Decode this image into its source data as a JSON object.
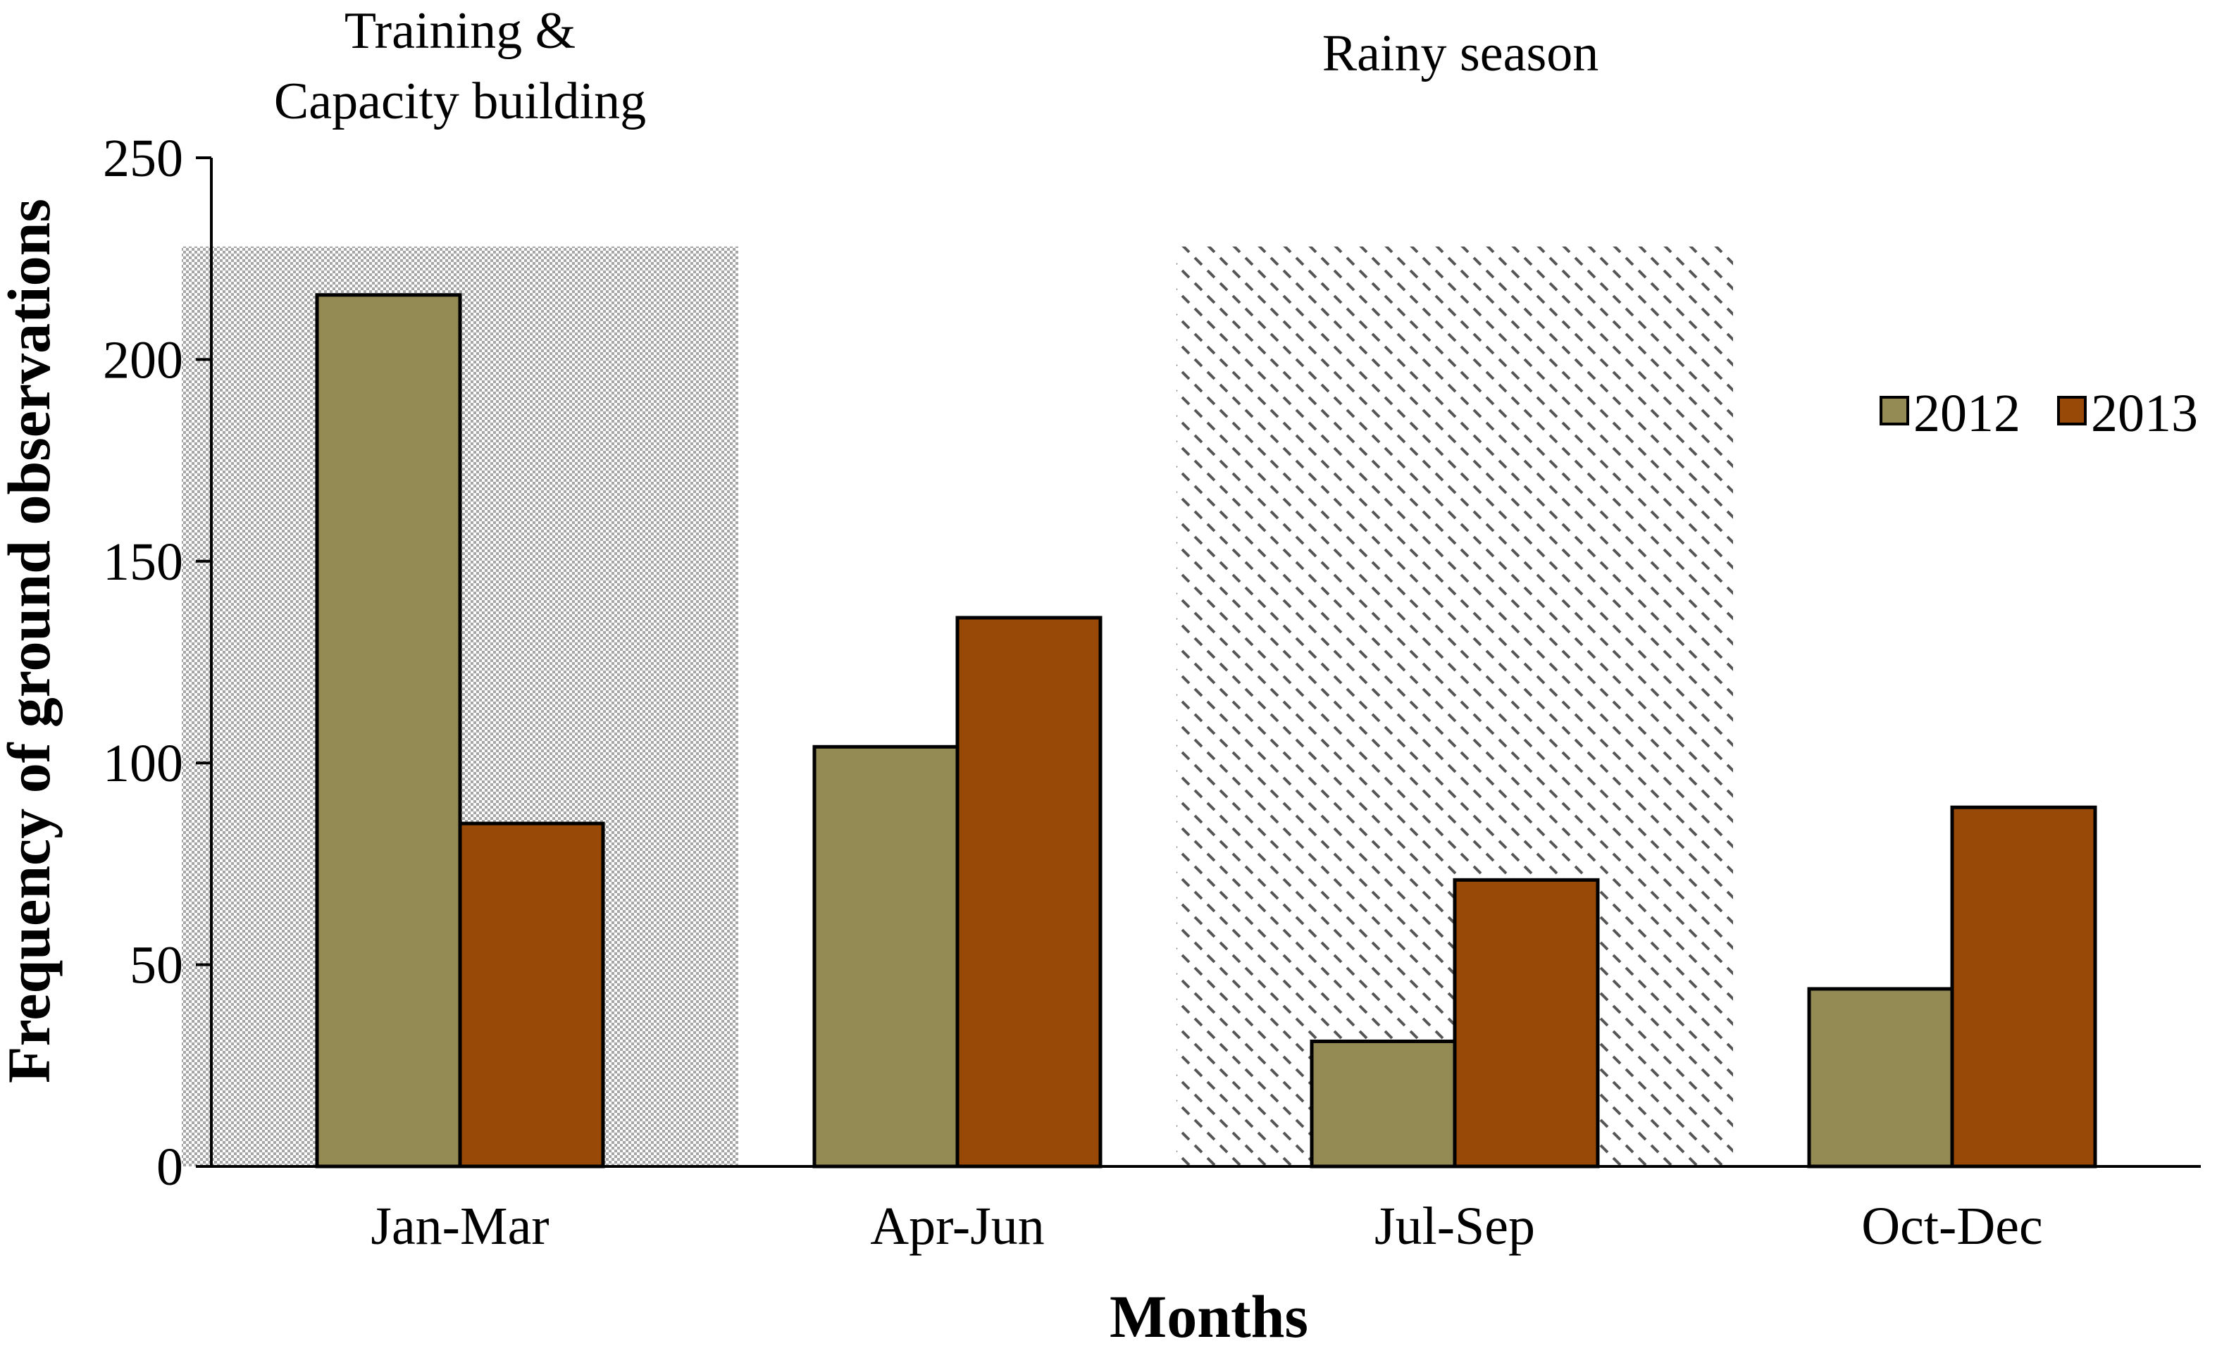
{
  "chart_data": {
    "type": "bar",
    "title": "",
    "xlabel": "Months",
    "ylabel": "Frequency of ground observations",
    "categories": [
      "Jan-Mar",
      "Apr-Jun",
      "Jul-Sep",
      "Oct-Dec"
    ],
    "series": [
      {
        "name": "2012",
        "values": [
          216,
          104,
          31,
          44
        ],
        "color": "#948a54"
      },
      {
        "name": "2013",
        "values": [
          85,
          136,
          71,
          89
        ],
        "color": "#984807"
      }
    ],
    "ylim": [
      0,
      250
    ],
    "yticks": [
      0,
      50,
      100,
      150,
      200,
      250
    ],
    "grid": false,
    "legend": "right",
    "shaded_regions": [
      {
        "category": "Jan-Mar",
        "label": "Training & Capacity building",
        "label_lines": [
          "Training &",
          "Capacity building"
        ],
        "pattern": "dotted",
        "top_value": 228
      },
      {
        "category": "Jul-Sep",
        "label": "Rainy season",
        "label_lines": [
          "Rainy season"
        ],
        "pattern": "dashed-diagonal",
        "top_value": 228
      }
    ]
  }
}
